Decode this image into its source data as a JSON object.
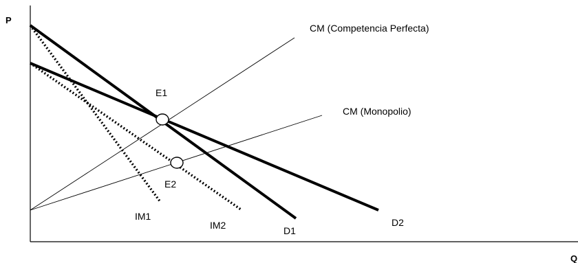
{
  "axes": {
    "y_label": "P",
    "x_label": "Q"
  },
  "curves": {
    "cm_competencia": "CM (Competencia Perfecta)",
    "cm_monopolio": "CM (Monopolio)",
    "d1": "D1",
    "d2": "D2",
    "im1": "IM1",
    "im2": "IM2"
  },
  "points": {
    "e1": "E1",
    "e2": "E2"
  }
}
